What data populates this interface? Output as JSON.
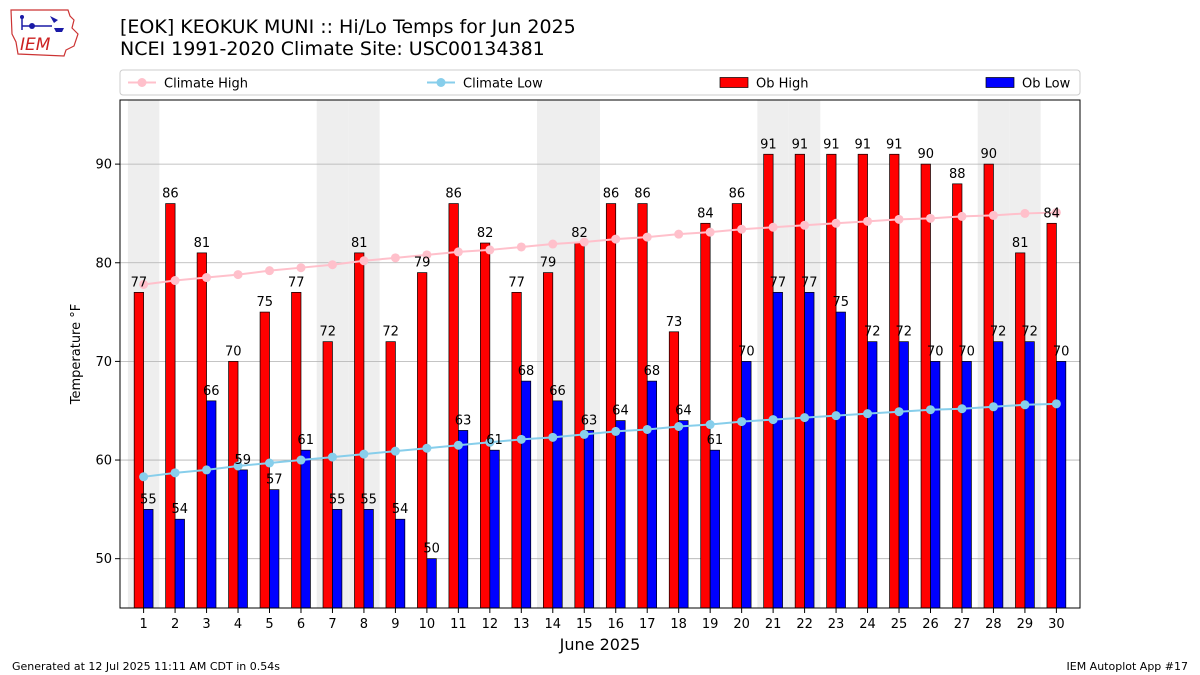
{
  "header": {
    "title_line1": "[EOK] KEOKUK MUNI :: Hi/Lo Temps for Jun 2025",
    "title_line2": "NCEI 1991-2020 Climate Site: USC00134381",
    "logo_text": "IEM"
  },
  "footer": {
    "generated": "Generated at 12 Jul 2025 11:11 AM CDT in 0.54s",
    "app": "IEM Autoplot App #17"
  },
  "colors": {
    "ob_high": "#ff0000",
    "ob_low": "#0000ff",
    "climate_high": "#ffc0cb",
    "climate_low": "#87ceeb",
    "weekend_shade": "#eeeeee",
    "grid": "#b0b0b0"
  },
  "chart_data": {
    "type": "bar",
    "xlabel": "June 2025",
    "ylabel": "Temperature °F",
    "ylim": [
      45,
      96.5
    ],
    "yticks": [
      50,
      60,
      70,
      80,
      90
    ],
    "grid": "horizontal",
    "legend_position": "top",
    "categories": [
      "1",
      "2",
      "3",
      "4",
      "5",
      "6",
      "7",
      "8",
      "9",
      "10",
      "11",
      "12",
      "13",
      "14",
      "15",
      "16",
      "17",
      "18",
      "19",
      "20",
      "21",
      "22",
      "23",
      "24",
      "25",
      "26",
      "27",
      "28",
      "29",
      "30"
    ],
    "weekend_days": [
      1,
      7,
      8,
      14,
      15,
      21,
      22,
      28,
      29
    ],
    "series": [
      {
        "name": "Climate High",
        "kind": "line",
        "values": [
          77.8,
          78.2,
          78.5,
          78.8,
          79.2,
          79.5,
          79.8,
          80.2,
          80.5,
          80.8,
          81.1,
          81.3,
          81.6,
          81.9,
          82.1,
          82.4,
          82.6,
          82.9,
          83.1,
          83.4,
          83.6,
          83.8,
          84.0,
          84.2,
          84.4,
          84.5,
          84.7,
          84.8,
          85.0,
          85.1
        ]
      },
      {
        "name": "Climate Low",
        "kind": "line",
        "values": [
          58.3,
          58.7,
          59.0,
          59.4,
          59.7,
          60.0,
          60.3,
          60.6,
          60.9,
          61.2,
          61.5,
          61.8,
          62.1,
          62.3,
          62.6,
          62.9,
          63.1,
          63.4,
          63.6,
          63.9,
          64.1,
          64.3,
          64.5,
          64.7,
          64.9,
          65.1,
          65.2,
          65.4,
          65.6,
          65.7
        ]
      },
      {
        "name": "Ob High",
        "kind": "bar",
        "values": [
          77,
          86,
          81,
          70,
          75,
          77,
          72,
          81,
          72,
          79,
          86,
          82,
          77,
          79,
          82,
          86,
          86,
          73,
          84,
          86,
          91,
          91,
          91,
          91,
          91,
          90,
          88,
          90,
          81,
          84
        ]
      },
      {
        "name": "Ob Low",
        "kind": "bar",
        "values": [
          55,
          54,
          66,
          59,
          57,
          61,
          55,
          55,
          54,
          50,
          63,
          61,
          68,
          66,
          63,
          64,
          68,
          64,
          61,
          70,
          77,
          77,
          75,
          72,
          72,
          70,
          70,
          72,
          72,
          70
        ]
      }
    ]
  }
}
